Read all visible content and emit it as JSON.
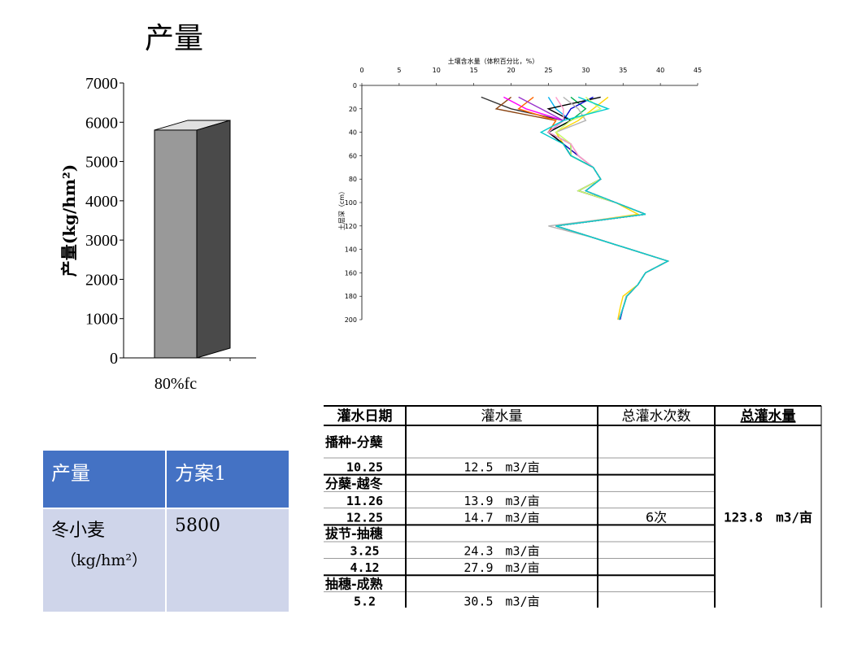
{
  "page": {
    "title": "产量"
  },
  "chart_data": [
    {
      "type": "bar",
      "categories": [
        "80%fc"
      ],
      "values": [
        5800
      ],
      "ylabel": "产量(kg/hm²)",
      "ylim": [
        0,
        7000
      ],
      "yticks": [
        0,
        1000,
        2000,
        3000,
        4000,
        5000,
        6000,
        7000
      ],
      "colors": {
        "front": "#999999",
        "side": "#4a4a4a",
        "top": "#e0e0e0"
      }
    },
    {
      "type": "line",
      "title": "土壤含水量（体积百分比，%）",
      "ylabel": "土层深（cm）",
      "xlim": [
        0,
        45
      ],
      "ylim": [
        200,
        0
      ],
      "xticks": [
        0,
        5,
        10,
        15,
        20,
        25,
        30,
        35,
        40,
        45
      ],
      "yticks": [
        0,
        20,
        40,
        60,
        80,
        100,
        120,
        140,
        160,
        180,
        200
      ],
      "depth": [
        10,
        20,
        30,
        40,
        50,
        60,
        70,
        80,
        90,
        100,
        110,
        120,
        130,
        140,
        150,
        160,
        170,
        180,
        190,
        200
      ],
      "series": [
        {
          "color": "#333333",
          "values": [
            16,
            20,
            27,
            25,
            27,
            28,
            31,
            32,
            29,
            34,
            38,
            26,
            31,
            36,
            41,
            38,
            37,
            35.5,
            35,
            34.5
          ]
        },
        {
          "color": "#8B4513",
          "values": [
            20,
            18,
            26,
            25,
            27,
            28,
            31,
            32,
            29,
            34,
            38,
            26,
            31,
            36,
            41,
            38,
            37,
            35.5,
            35,
            34.5
          ]
        },
        {
          "color": "#ff00ff",
          "values": [
            19,
            22,
            27,
            25,
            28,
            29,
            31,
            32,
            30,
            34,
            38,
            26,
            31,
            36,
            41,
            38,
            37,
            35.5,
            35,
            34.6
          ]
        },
        {
          "color": "#ff6600",
          "values": [
            23,
            21,
            26,
            25,
            27,
            29,
            31,
            32,
            29,
            34,
            38,
            26,
            31,
            36,
            41,
            38,
            37,
            35.5,
            35,
            34.5
          ]
        },
        {
          "color": "#9933cc",
          "values": [
            21,
            24,
            27,
            25,
            28,
            28,
            31,
            32,
            30,
            34,
            38,
            26,
            31,
            36,
            41,
            38,
            37,
            35.5,
            35,
            34.4
          ]
        },
        {
          "color": "#00b0f0",
          "values": [
            25,
            26,
            28,
            25,
            27,
            28,
            31,
            32,
            29,
            34,
            38,
            26,
            31,
            36,
            41,
            38,
            37,
            35.5,
            35,
            34.5
          ]
        },
        {
          "color": "#ffd700",
          "values": [
            33,
            31,
            29,
            26,
            27,
            29,
            31,
            32,
            29,
            34,
            37,
            26,
            31,
            36,
            41,
            38,
            37,
            35,
            34.6,
            34.3
          ]
        },
        {
          "color": "#00b050",
          "values": [
            28,
            30,
            28,
            25,
            28,
            28,
            31,
            32,
            30,
            34,
            38,
            26,
            31,
            36,
            41,
            38,
            37,
            35.5,
            35,
            34.5
          ]
        },
        {
          "color": "#0000cc",
          "values": [
            31,
            28,
            27,
            25,
            27,
            29,
            31,
            32,
            29,
            34,
            38,
            26,
            31,
            36,
            41,
            38,
            37,
            35.5,
            35,
            34.6
          ]
        },
        {
          "color": "#000000",
          "values": [
            32,
            25,
            28,
            25,
            27,
            28,
            31,
            32,
            30,
            34,
            38,
            26,
            31,
            36,
            41,
            38,
            37,
            35.5,
            35,
            34.5
          ]
        },
        {
          "color": "#b4b4b4",
          "values": [
            27,
            29,
            30,
            26,
            28,
            29,
            31,
            32,
            30,
            34,
            38,
            25,
            31,
            36,
            41,
            38,
            37,
            35.4,
            35,
            34.4
          ]
        },
        {
          "color": "#ccff66",
          "values": [
            30,
            32,
            28,
            26,
            28,
            28,
            31,
            32,
            29,
            34,
            38,
            26,
            31,
            36,
            41,
            38,
            37,
            35.5,
            35,
            34.5
          ]
        },
        {
          "color": "#ff99cc",
          "values": [
            26,
            27,
            27,
            25,
            28,
            29,
            31,
            32,
            30,
            34,
            38,
            26,
            31,
            36,
            41,
            38,
            37,
            35.5,
            35,
            34.5
          ]
        },
        {
          "color": "#00cccc",
          "values": [
            29,
            33,
            27,
            24,
            27,
            28,
            31,
            32,
            30,
            34,
            38,
            26,
            31,
            36,
            41,
            38,
            37,
            35.5,
            35,
            34.5
          ]
        }
      ]
    }
  ],
  "yield_table": {
    "header": [
      "产量",
      "方案1"
    ],
    "row_label": "冬小麦",
    "row_unit": "（kg/hm²）",
    "row_value": "5800"
  },
  "irrigation_table": {
    "headers": [
      "灌水日期",
      "灌水量",
      "总灌水次数",
      "总灌水量"
    ],
    "rows": [
      {
        "kind": "stage",
        "date": "播种-分蘖",
        "amount": ""
      },
      {
        "kind": "data",
        "date": "10.25",
        "amount": "12.5　m3/亩"
      },
      {
        "kind": "stage",
        "date": "分蘖-越冬",
        "amount": ""
      },
      {
        "kind": "data",
        "date": "11.26",
        "amount": "13.9　m3/亩"
      },
      {
        "kind": "data",
        "date": "12.25",
        "amount": "14.7　m3/亩"
      },
      {
        "kind": "stage",
        "date": "拔节-抽穗",
        "amount": ""
      },
      {
        "kind": "data",
        "date": "3.25",
        "amount": "24.3　m3/亩"
      },
      {
        "kind": "data",
        "date": "4.12",
        "amount": "27.9　m3/亩"
      },
      {
        "kind": "stage",
        "date": "抽穗-成熟",
        "amount": ""
      },
      {
        "kind": "data",
        "date": "5.2",
        "amount": "30.5　m3/亩"
      }
    ],
    "total_count": "6次",
    "total_amount": "123.8　m3/亩"
  }
}
